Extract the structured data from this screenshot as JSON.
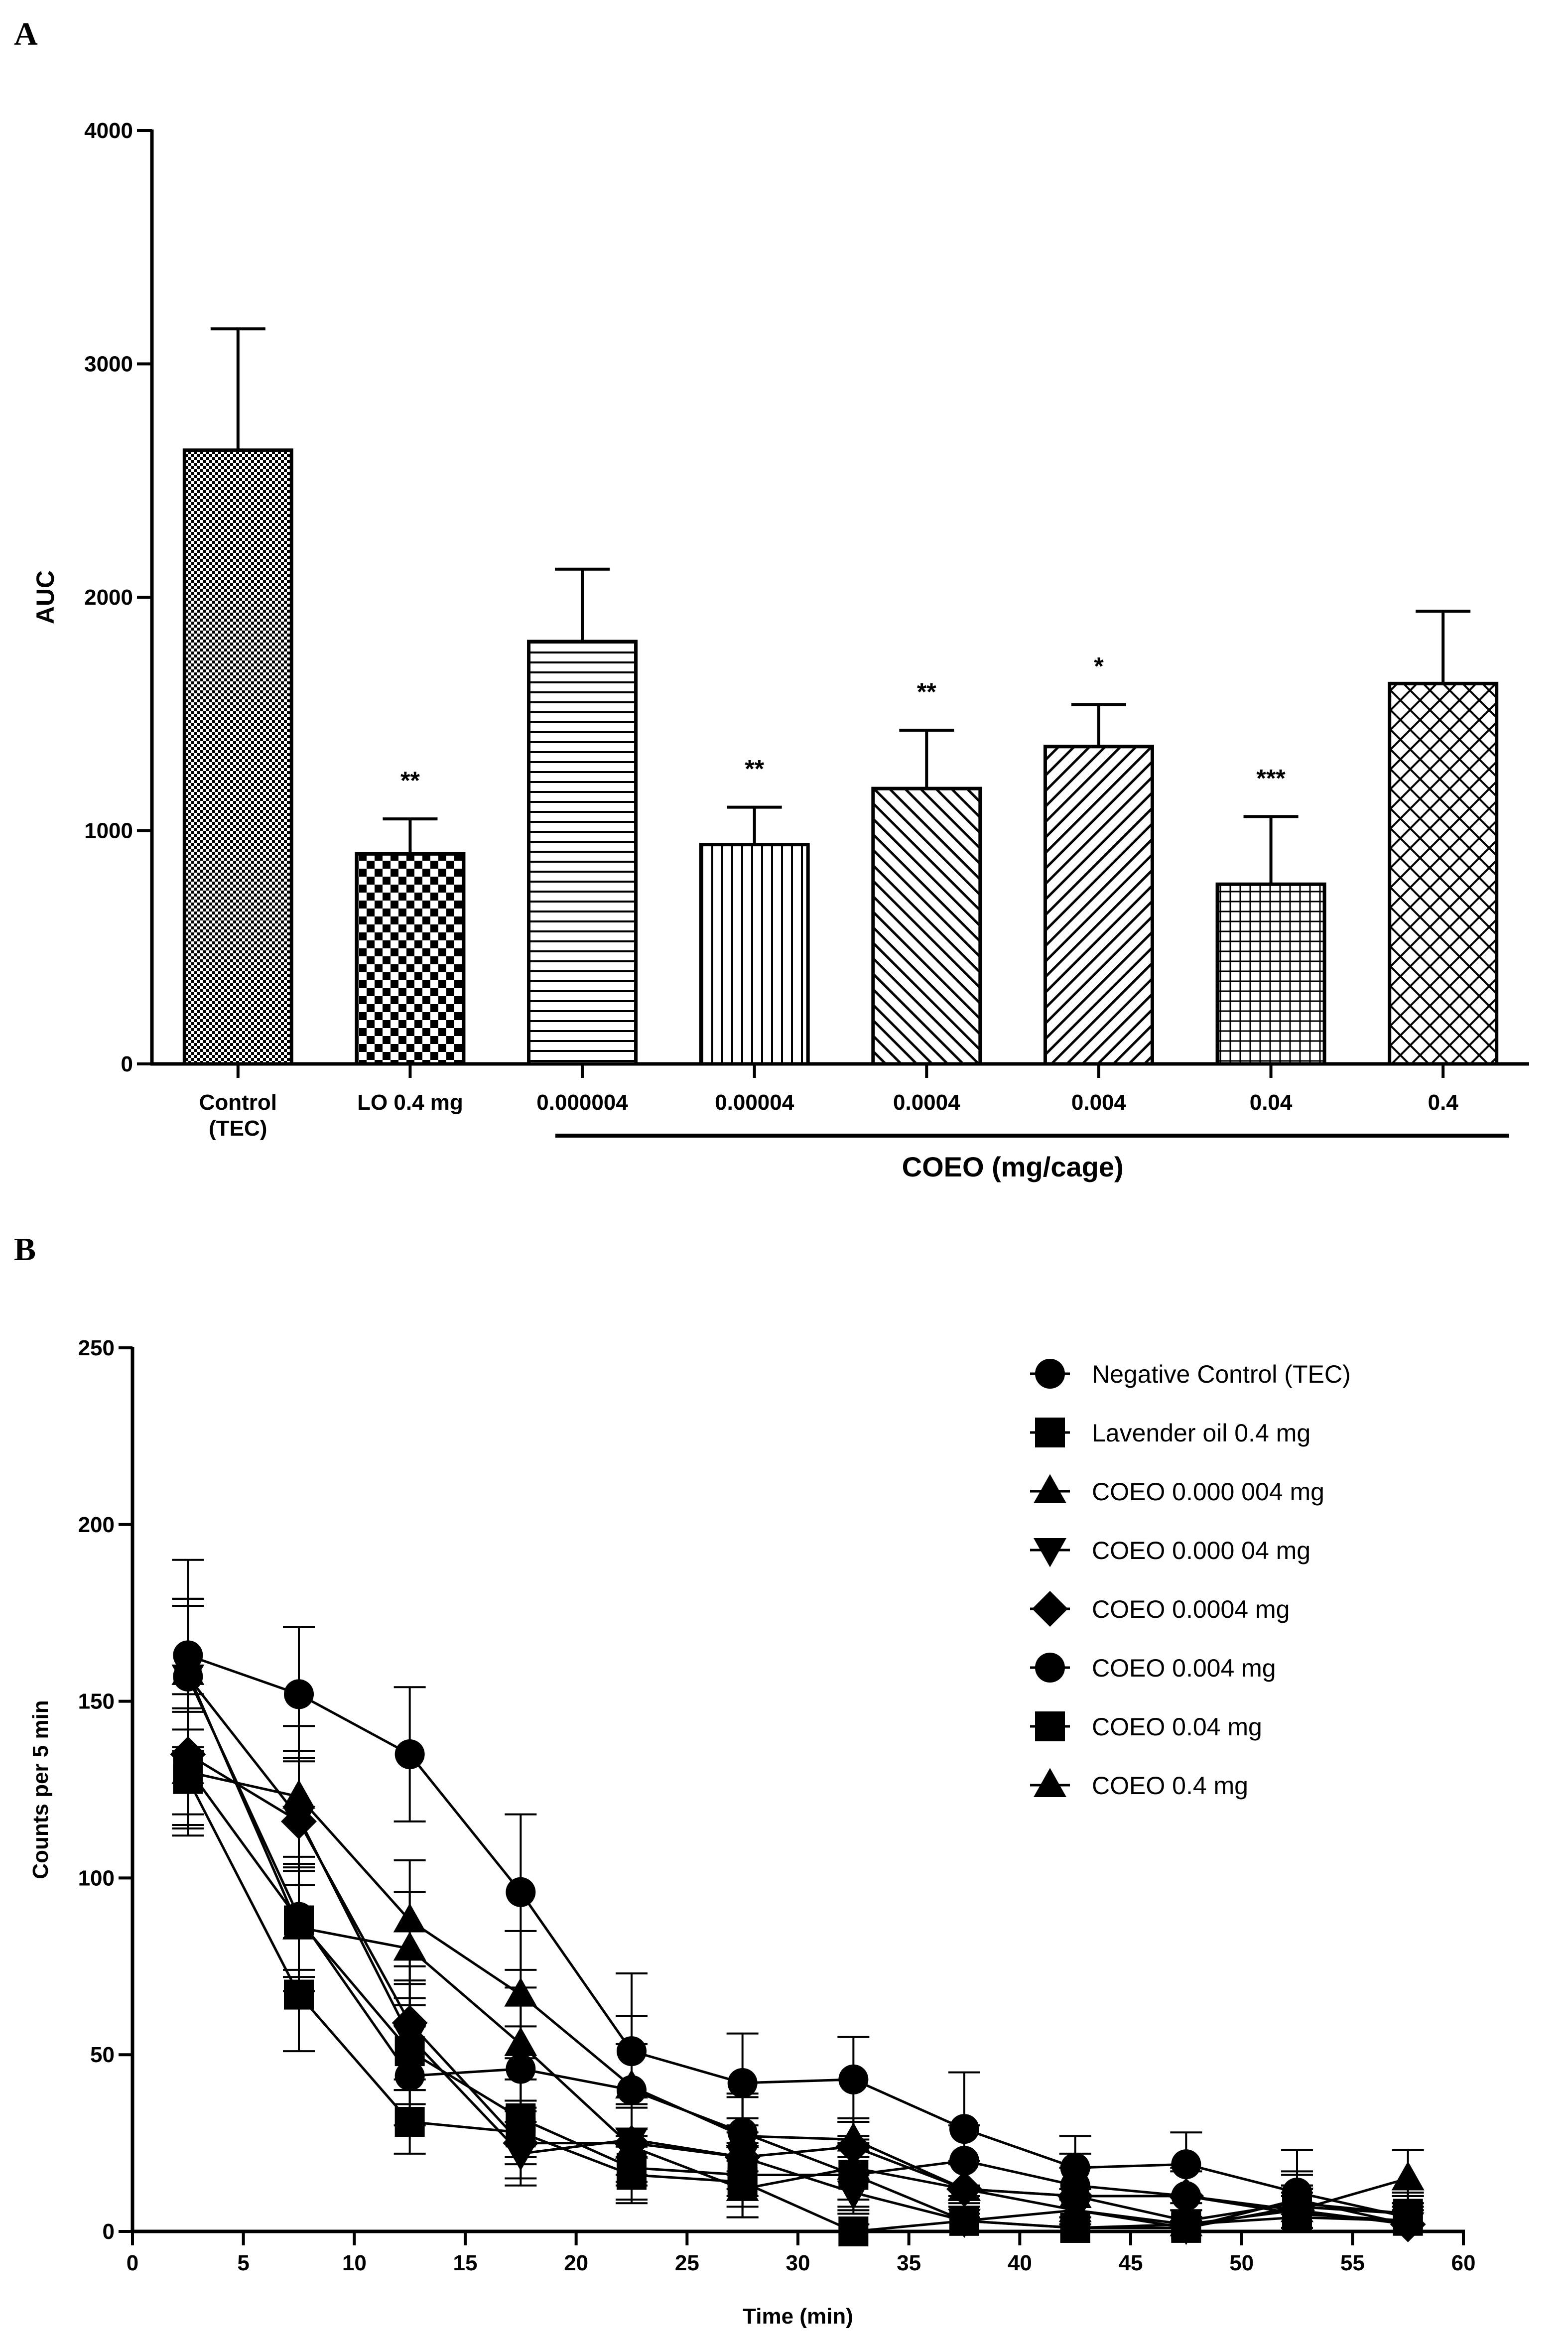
{
  "chart_data": [
    {
      "panel": "A",
      "type": "bar",
      "ylabel": "AUC",
      "ylim": [
        0,
        4000
      ],
      "yticks": [
        0,
        1000,
        2000,
        3000,
        4000
      ],
      "categories": [
        {
          "label_lines": [
            "Control",
            "(TEC)"
          ],
          "value": 2630,
          "error": 520,
          "sig": "",
          "pattern": "fine-check"
        },
        {
          "label_lines": [
            "LO 0.4 mg"
          ],
          "value": 900,
          "error": 150,
          "sig": "**",
          "pattern": "checker"
        },
        {
          "label_lines": [
            "0.000004"
          ],
          "value": 1810,
          "error": 310,
          "sig": "",
          "pattern": "horizontal"
        },
        {
          "label_lines": [
            "0.00004"
          ],
          "value": 940,
          "error": 160,
          "sig": "**",
          "pattern": "vertical"
        },
        {
          "label_lines": [
            "0.0004"
          ],
          "value": 1180,
          "error": 250,
          "sig": "**",
          "pattern": "diag-up"
        },
        {
          "label_lines": [
            "0.004"
          ],
          "value": 1360,
          "error": 180,
          "sig": "*",
          "pattern": "diag-down"
        },
        {
          "label_lines": [
            "0.04"
          ],
          "value": 770,
          "error": 290,
          "sig": "***",
          "pattern": "grid"
        },
        {
          "label_lines": [
            "0.4"
          ],
          "value": 1630,
          "error": 310,
          "sig": "",
          "pattern": "diamond"
        }
      ],
      "group_label": "COEO (mg/cage)",
      "group_span": [
        2,
        7
      ]
    },
    {
      "panel": "B",
      "type": "line",
      "xlabel": "Time (min)",
      "ylabel": "Counts per 5 min",
      "xlim": [
        0,
        60
      ],
      "ylim": [
        0,
        250
      ],
      "xticks": [
        0,
        5,
        10,
        15,
        20,
        25,
        30,
        35,
        40,
        45,
        50,
        55,
        60
      ],
      "yticks": [
        0,
        50,
        100,
        150,
        200,
        250
      ],
      "x": [
        2.5,
        7.5,
        12.5,
        17.5,
        22.5,
        27.5,
        32.5,
        37.5,
        42.5,
        47.5,
        52.5,
        57.5
      ],
      "legend_position": "top-right",
      "series": [
        {
          "name": "Negative Control (TEC)",
          "marker": "circle",
          "values": [
            163,
            152,
            135,
            96,
            51,
            42,
            43,
            29,
            18,
            19,
            11,
            4
          ],
          "errors": [
            27,
            19,
            19,
            22,
            22,
            14,
            12,
            16,
            9,
            9,
            12,
            6
          ]
        },
        {
          "name": "Lavender oil 0.4 mg",
          "marker": "square",
          "values": [
            128,
            67,
            31,
            28,
            16,
            14,
            0,
            3,
            1,
            2,
            4,
            3
          ],
          "errors": [
            14,
            16,
            9,
            9,
            8,
            10,
            2,
            6,
            3,
            4,
            6,
            5
          ]
        },
        {
          "name": "COEO 0.000 004 mg",
          "marker": "triangle-up",
          "values": [
            130,
            123,
            88,
            67,
            41,
            27,
            26,
            12,
            10,
            3,
            8,
            5
          ],
          "errors": [
            18,
            20,
            17,
            18,
            20,
            11,
            5,
            7,
            8,
            5,
            8,
            6
          ]
        },
        {
          "name": "COEO 0.000 04 mg",
          "marker": "triangle-down",
          "values": [
            157,
            117,
            55,
            22,
            26,
            21,
            11,
            3,
            6,
            1,
            9,
            2
          ],
          "errors": [
            20,
            19,
            15,
            9,
            10,
            9,
            6,
            4,
            6,
            3,
            8,
            4
          ]
        },
        {
          "name": "COEO 0.0004 mg",
          "marker": "diamond",
          "values": [
            135,
            116,
            59,
            25,
            25,
            21,
            24,
            12,
            10,
            10,
            6,
            2
          ],
          "errors": [
            17,
            18,
            16,
            10,
            11,
            11,
            8,
            7,
            8,
            7,
            7,
            4
          ]
        },
        {
          "name": "COEO 0.004 mg",
          "marker": "circle",
          "values": [
            157,
            89,
            44,
            46,
            40,
            28,
            16,
            20,
            13,
            10,
            5,
            3
          ],
          "errors": [
            22,
            17,
            14,
            12,
            13,
            11,
            9,
            10,
            9,
            8,
            6,
            5
          ]
        },
        {
          "name": "COEO 0.04 mg",
          "marker": "square",
          "values": [
            131,
            88,
            51,
            32,
            18,
            16,
            16,
            3,
            1,
            1,
            7,
            5
          ],
          "errors": [
            16,
            14,
            15,
            11,
            9,
            9,
            10,
            5,
            3,
            3,
            6,
            5
          ]
        },
        {
          "name": "COEO 0.4 mg",
          "marker": "triangle-up",
          "values": [
            158,
            86,
            80,
            53,
            24,
            12,
            18,
            12,
            6,
            2,
            6,
            15
          ],
          "errors": [
            21,
            18,
            16,
            16,
            11,
            8,
            9,
            8,
            6,
            4,
            6,
            8
          ]
        }
      ]
    }
  ]
}
